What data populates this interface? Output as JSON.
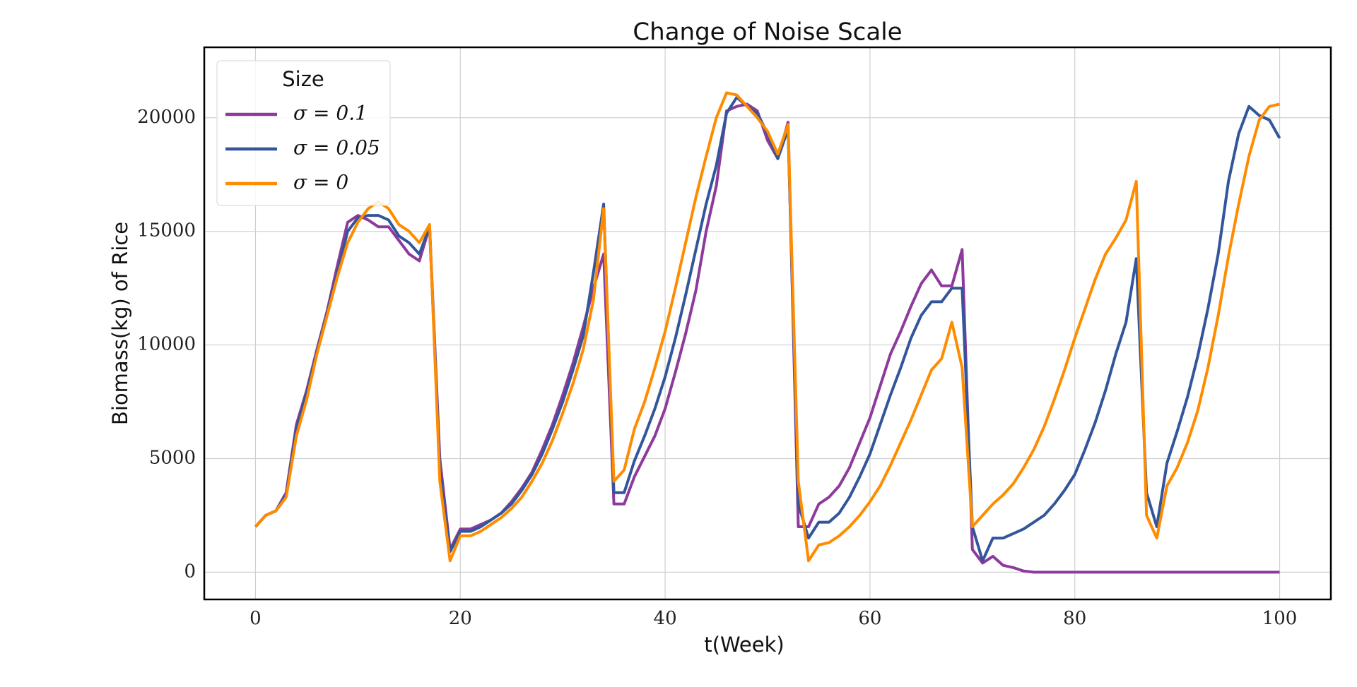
{
  "chart_data": {
    "type": "line",
    "title": "Change of Noise Scale",
    "xlabel": "t(Week)",
    "ylabel": "Biomass(kg) of Rice",
    "legend_title": "Size",
    "legend": "upper left",
    "grid": true,
    "xlim": [
      -5,
      105
    ],
    "xticks": [
      0,
      20,
      40,
      60,
      80,
      100
    ],
    "ylim": [
      -1200,
      23100
    ],
    "yticks": [
      0,
      5000,
      10000,
      15000,
      20000
    ],
    "x": [
      0,
      1,
      2,
      3,
      4,
      5,
      6,
      7,
      8,
      9,
      10,
      11,
      12,
      13,
      14,
      15,
      16,
      17,
      18,
      19,
      20,
      21,
      22,
      23,
      24,
      25,
      26,
      27,
      28,
      29,
      30,
      31,
      32,
      33,
      34,
      35,
      36,
      37,
      38,
      39,
      40,
      41,
      42,
      43,
      44,
      45,
      46,
      47,
      48,
      49,
      50,
      51,
      52,
      53,
      54,
      55,
      56,
      57,
      58,
      59,
      60,
      61,
      62,
      63,
      64,
      65,
      66,
      67,
      68,
      69,
      70,
      71,
      72,
      73,
      74,
      75,
      76,
      77,
      78,
      79,
      80,
      81,
      82,
      83,
      84,
      85,
      86,
      87,
      88,
      89,
      90,
      91,
      92,
      93,
      94,
      95,
      96,
      97,
      98,
      99,
      100
    ],
    "series": [
      {
        "name": "σ = 0.1",
        "color": "#8e3a9c",
        "values": [
          2000,
          2500,
          2700,
          3500,
          6500,
          8000,
          9800,
          11500,
          13500,
          15400,
          15700,
          15500,
          15200,
          15200,
          14600,
          14000,
          13700,
          15200,
          5000,
          1000,
          1900,
          1900,
          2100,
          2300,
          2600,
          3100,
          3700,
          4400,
          5400,
          6500,
          7800,
          9200,
          10800,
          12500,
          14000,
          3000,
          3000,
          4200,
          5100,
          6000,
          7200,
          8800,
          10500,
          12400,
          15000,
          17000,
          20300,
          20500,
          20600,
          20300,
          19000,
          18200,
          19800,
          2000,
          2000,
          3000,
          3300,
          3800,
          4600,
          5700,
          6800,
          8200,
          9600,
          10600,
          11700,
          12700,
          13300,
          12600,
          12600,
          14200,
          1000,
          400,
          700,
          300,
          200,
          50,
          0,
          0,
          0,
          0,
          0,
          0,
          0,
          0,
          0,
          0,
          0,
          0,
          0,
          0,
          0,
          0,
          0,
          0,
          0,
          0,
          0,
          0,
          0,
          0,
          0
        ]
      },
      {
        "name": "σ = 0.05",
        "color": "#33569b",
        "values": [
          2000,
          2500,
          2700,
          3400,
          6300,
          7900,
          9700,
          11400,
          13200,
          15000,
          15600,
          15700,
          15700,
          15500,
          14800,
          14500,
          14000,
          15200,
          4500,
          900,
          1800,
          1800,
          2000,
          2300,
          2600,
          3000,
          3600,
          4300,
          5200,
          6300,
          7500,
          8900,
          10400,
          13200,
          16200,
          3500,
          3500,
          4900,
          6000,
          7200,
          8600,
          10300,
          12200,
          14200,
          16200,
          17900,
          20200,
          20900,
          20500,
          20200,
          19300,
          18200,
          19500,
          3000,
          1500,
          2200,
          2200,
          2600,
          3300,
          4200,
          5200,
          6500,
          7800,
          9000,
          10300,
          11300,
          11900,
          11900,
          12500,
          12500,
          2000,
          500,
          1500,
          1500,
          1700,
          1900,
          2200,
          2500,
          3000,
          3600,
          4300,
          5400,
          6600,
          8000,
          9600,
          11000,
          13800,
          3500,
          2000,
          4800,
          6200,
          7700,
          9500,
          11600,
          14000,
          17200,
          19300,
          20500,
          20100,
          19900,
          19100
        ]
      },
      {
        "name": "σ = 0",
        "color": "#ff8c00",
        "values": [
          2000,
          2500,
          2700,
          3300,
          6000,
          7600,
          9600,
          11300,
          13000,
          14500,
          15400,
          16000,
          16300,
          16000,
          15300,
          15000,
          14500,
          15300,
          4000,
          500,
          1600,
          1600,
          1800,
          2100,
          2400,
          2800,
          3300,
          4000,
          4800,
          5800,
          7000,
          8300,
          9800,
          12000,
          16000,
          4000,
          4500,
          6300,
          7500,
          9000,
          10600,
          12500,
          14500,
          16500,
          18300,
          20000,
          21100,
          21000,
          20500,
          20000,
          19400,
          18400,
          19700,
          4000,
          500,
          1200,
          1300,
          1600,
          2000,
          2500,
          3100,
          3800,
          4700,
          5700,
          6700,
          7800,
          8900,
          9400,
          11000,
          9000,
          2000,
          2500,
          3000,
          3400,
          3900,
          4600,
          5400,
          6400,
          7600,
          8900,
          10300,
          11600,
          12900,
          14000,
          14700,
          15500,
          17200,
          2500,
          1500,
          3800,
          4600,
          5700,
          7100,
          9000,
          11300,
          13900,
          16200,
          18300,
          19900,
          20500,
          20600
        ]
      }
    ]
  }
}
